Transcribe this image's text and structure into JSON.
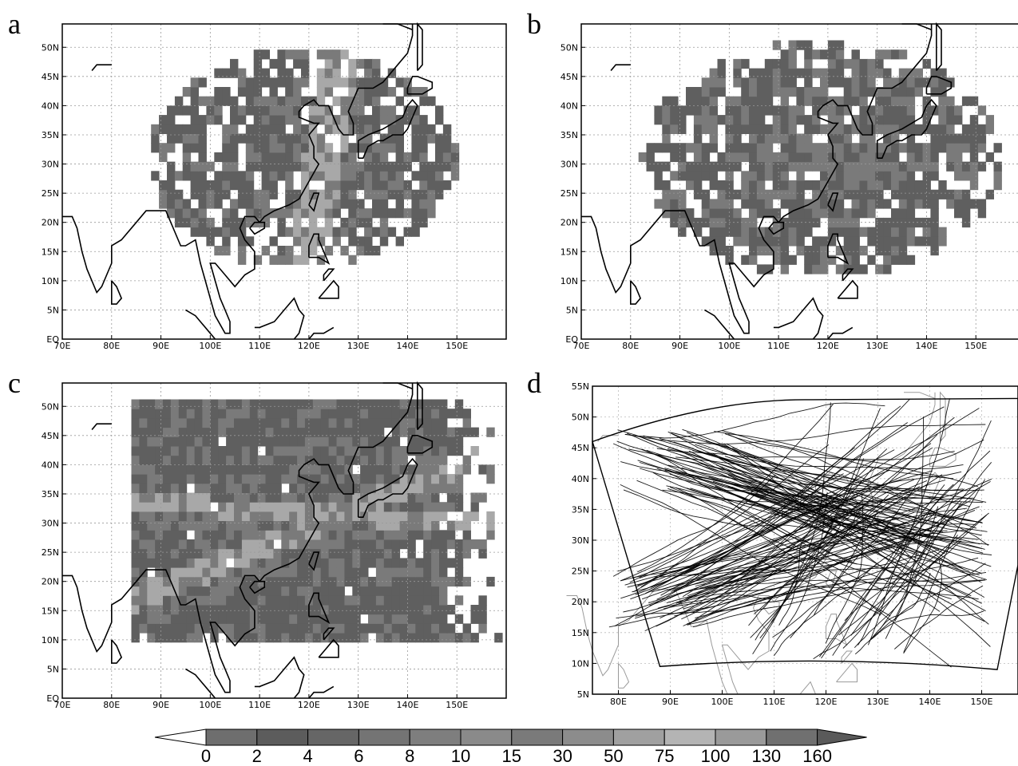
{
  "panels": [
    {
      "letter": "a",
      "id": "a"
    },
    {
      "letter": "b",
      "id": "b"
    },
    {
      "letter": "c",
      "id": "c"
    },
    {
      "letter": "d",
      "id": "d"
    }
  ],
  "lon_ticks": [
    "70E",
    "80E",
    "90E",
    "100E",
    "110E",
    "120E",
    "130E",
    "140E",
    "150E"
  ],
  "lat_ticks": [
    "EQ",
    "5N",
    "10N",
    "15N",
    "20N",
    "25N",
    "30N",
    "35N",
    "40N",
    "45N",
    "50N"
  ],
  "panel_d": {
    "lon_ticks": [
      "80E",
      "90E",
      "100E",
      "110E",
      "120E",
      "130E",
      "140E",
      "150E"
    ],
    "lat_ticks": [
      "5N",
      "10N",
      "15N",
      "20N",
      "25N",
      "30N",
      "35N",
      "40N",
      "45N",
      "50N",
      "55N"
    ]
  },
  "colorbar": {
    "labels": [
      "0",
      "2",
      "4",
      "6",
      "8",
      "10",
      "15",
      "30",
      "50",
      "75",
      "100",
      "130",
      "160"
    ],
    "colors": [
      "#ffffff",
      "#6e6e6e",
      "#5c5c5c",
      "#666666",
      "#747474",
      "#7e7e7e",
      "#8a8a8a",
      "#7a7a7a",
      "#8c8c8c",
      "#a0a0a0",
      "#b4b4b4",
      "#9a9a9a",
      "#707070",
      "#5a5a5a"
    ]
  },
  "colors": {
    "density_dark": "#5f5f5f",
    "density_mid": "#7a7a7a",
    "density_light": "#a8a8a8",
    "coast": "#000000",
    "grid": "#999999",
    "track": "#000000",
    "coast_d": "#9a9a9a"
  }
}
